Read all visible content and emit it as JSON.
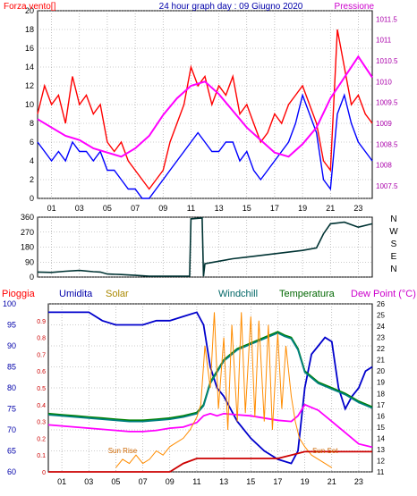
{
  "page": {
    "background": "#ffffff",
    "plot_background": "#ffffff",
    "grid_color": "#9a9a9a",
    "frame_color": "#000000"
  },
  "chart_data": [
    {
      "type": "line",
      "title": "24 hour graph day : 09 Giugno 2020",
      "left_label": "Forza vento[]",
      "right_label": "Pressione",
      "x_ticks": [
        "01",
        "03",
        "05",
        "07",
        "09",
        "11",
        "13",
        "15",
        "17",
        "19",
        "21",
        "23"
      ],
      "x_range": [
        0,
        24
      ],
      "y_left_range": [
        0,
        20
      ],
      "y_left_ticks": [
        0,
        2,
        4,
        6,
        8,
        10,
        12,
        14,
        16,
        18,
        20
      ],
      "y_right_range": [
        1007.2,
        1011.7
      ],
      "y_right_ticks": [
        "1007.5",
        "1008",
        "1008.5",
        "1009",
        "1009.5",
        "1010",
        "1010.5",
        "1011",
        "1011.5"
      ],
      "y_right_tick_values": [
        1007.5,
        1008,
        1008.5,
        1009,
        1009.5,
        1010,
        1010.5,
        1011,
        1011.5
      ],
      "series": [
        {
          "axis": "left",
          "color": "#ff0000",
          "x": [
            0,
            0.5,
            1,
            1.5,
            2,
            2.5,
            3,
            3.5,
            4,
            4.5,
            5,
            5.5,
            6,
            6.5,
            7,
            7.5,
            8,
            8.5,
            9,
            9.5,
            10,
            10.5,
            11,
            11.5,
            12,
            12.5,
            13,
            13.5,
            14,
            14.5,
            15,
            15.5,
            16,
            16.5,
            17,
            17.5,
            18,
            18.5,
            19,
            19.5,
            20,
            20.5,
            21,
            21.5,
            22,
            22.5,
            23,
            23.5,
            24
          ],
          "values": [
            9,
            12,
            10,
            11,
            8,
            13,
            10,
            11,
            9,
            10,
            6,
            5,
            6,
            4,
            3,
            2,
            1,
            2,
            3,
            6,
            8,
            10,
            14,
            12,
            13,
            10,
            12,
            11,
            13,
            9,
            10,
            8,
            6,
            7,
            9,
            8,
            10,
            11,
            12,
            10,
            8,
            4,
            3,
            18,
            14,
            10,
            11,
            9,
            8
          ]
        },
        {
          "axis": "left",
          "color": "#0000ff",
          "x": [
            0,
            0.5,
            1,
            1.5,
            2,
            2.5,
            3,
            3.5,
            4,
            4.5,
            5,
            5.5,
            6,
            6.5,
            7,
            7.5,
            8,
            8.5,
            9,
            9.5,
            10,
            10.5,
            11,
            11.5,
            12,
            12.5,
            13,
            13.5,
            14,
            14.5,
            15,
            15.5,
            16,
            16.5,
            17,
            17.5,
            18,
            18.5,
            19,
            19.5,
            20,
            20.5,
            21,
            21.5,
            22,
            22.5,
            23,
            23.5,
            24
          ],
          "values": [
            6,
            5,
            4,
            5,
            4,
            6,
            5,
            5,
            4,
            5,
            3,
            3,
            2,
            1,
            1,
            0,
            0,
            1,
            2,
            3,
            4,
            5,
            6,
            7,
            6,
            5,
            5,
            6,
            6,
            4,
            5,
            3,
            2,
            3,
            4,
            5,
            6,
            8,
            11,
            9,
            7,
            2,
            1,
            9,
            11,
            8,
            6,
            5,
            4
          ]
        },
        {
          "axis": "right",
          "color": "#ff00ff",
          "x": [
            0,
            1,
            2,
            3,
            4,
            5,
            6,
            7,
            8,
            9,
            10,
            11,
            12,
            13,
            14,
            15,
            16,
            17,
            18,
            19,
            20,
            21,
            22,
            23,
            24
          ],
          "values": [
            1009.1,
            1008.9,
            1008.7,
            1008.6,
            1008.4,
            1008.3,
            1008.2,
            1008.4,
            1008.7,
            1009.2,
            1009.6,
            1009.9,
            1010.0,
            1009.7,
            1009.3,
            1008.9,
            1008.6,
            1008.3,
            1008.2,
            1008.5,
            1008.9,
            1009.6,
            1010.1,
            1010.6,
            1010.1
          ]
        }
      ]
    },
    {
      "type": "line",
      "x_range": [
        0,
        24
      ],
      "y_range": [
        0,
        360
      ],
      "y_ticks": [
        0,
        90,
        180,
        270,
        360
      ],
      "y_tick_labels": [
        "0",
        "90",
        "180",
        "270",
        "360"
      ],
      "direction_labels": [
        "N",
        "W",
        "S",
        "E",
        "N"
      ],
      "series": [
        {
          "color": "#003333",
          "x": [
            0,
            1,
            2,
            3,
            4,
            4.5,
            5,
            6,
            7,
            8,
            9,
            10,
            10.9,
            11,
            11.8,
            11.9,
            12,
            13,
            14,
            15,
            16,
            17,
            18,
            19,
            20,
            20.5,
            21,
            22,
            23,
            24
          ],
          "values": [
            30,
            28,
            35,
            40,
            32,
            30,
            18,
            15,
            10,
            5,
            5,
            5,
            5,
            350,
            355,
            5,
            80,
            95,
            110,
            120,
            130,
            140,
            150,
            160,
            175,
            260,
            320,
            330,
            300,
            320
          ]
        }
      ]
    },
    {
      "type": "line",
      "left_labels": [
        {
          "text": "Pioggia",
          "color": "#ff0000"
        },
        {
          "text": "Umidita",
          "color": "#0000aa"
        },
        {
          "text": "Solar",
          "color": "#aa8800"
        }
      ],
      "right_labels": [
        {
          "text": "Windchill",
          "color": "#006666"
        },
        {
          "text": "Temperatura",
          "color": "#006600"
        },
        {
          "text": "Dew Point (°C)",
          "color": "#cc00cc"
        }
      ],
      "x_ticks": [
        "01",
        "03",
        "05",
        "07",
        "09",
        "11",
        "13",
        "15",
        "17",
        "19",
        "21",
        "23"
      ],
      "x_range": [
        0,
        24
      ],
      "y_left_range": [
        60,
        100
      ],
      "y_left_ticks": [
        60,
        65,
        70,
        75,
        80,
        85,
        90,
        95,
        100
      ],
      "y_rain_range": [
        0,
        1
      ],
      "y_rain_ticks": [
        "0",
        "0.1",
        "0.2",
        "0.3",
        "0.4",
        "0.5",
        "0.6",
        "0.7",
        "0.8",
        "0.9"
      ],
      "y_rain_tick_values": [
        0,
        0.1,
        0.2,
        0.3,
        0.4,
        0.5,
        0.6,
        0.7,
        0.8,
        0.9
      ],
      "y_right_range": [
        11,
        26
      ],
      "y_right_ticks": [
        11,
        12,
        13,
        14,
        15,
        16,
        17,
        18,
        19,
        20,
        21,
        22,
        23,
        24,
        25,
        26
      ],
      "annotations": [
        {
          "text": "Sun Rise",
          "x": 5.5,
          "y": 64.5,
          "color": "#cc6600"
        },
        {
          "text": "Sun Set",
          "x": 20.5,
          "y": 64.5,
          "color": "#cc6600"
        }
      ],
      "series": [
        {
          "name": "Umidita",
          "axis": "left",
          "color": "#0000cc",
          "x": [
            0,
            1,
            2,
            3,
            4,
            5,
            6,
            7,
            8,
            9,
            10,
            11,
            11.5,
            12,
            12.5,
            13,
            13.5,
            14,
            15,
            16,
            17,
            18,
            18.5,
            19,
            19.5,
            20,
            20.5,
            21,
            21.5,
            22,
            22.5,
            23,
            23.5,
            24
          ],
          "values": [
            98,
            98,
            98,
            98,
            96,
            95,
            95,
            95,
            96,
            96,
            97,
            98,
            95,
            85,
            80,
            78,
            75,
            72,
            68,
            65,
            63,
            62,
            65,
            80,
            88,
            90,
            92,
            91,
            80,
            75,
            78,
            80,
            84,
            85
          ]
        },
        {
          "name": "Temperatura",
          "axis": "right",
          "color": "#008000",
          "x": [
            0,
            1,
            2,
            3,
            4,
            5,
            6,
            7,
            8,
            9,
            10,
            11,
            11.5,
            12,
            12.5,
            13,
            14,
            15,
            16,
            17,
            17.5,
            18,
            18.5,
            19,
            20,
            21,
            22,
            23,
            24
          ],
          "values": [
            16.2,
            16.1,
            16.0,
            15.9,
            15.8,
            15.7,
            15.6,
            15.6,
            15.7,
            15.8,
            16.0,
            16.3,
            17,
            19,
            20,
            21,
            22,
            22.5,
            23,
            23.5,
            23.2,
            23,
            22,
            20,
            19,
            18.5,
            18,
            17.3,
            16.8
          ]
        },
        {
          "name": "Windchill",
          "axis": "right",
          "color": "#008080",
          "x": [
            0,
            1,
            2,
            3,
            4,
            5,
            6,
            7,
            8,
            9,
            10,
            11,
            11.5,
            12,
            12.5,
            13,
            14,
            15,
            16,
            17,
            17.5,
            18,
            18.5,
            19,
            20,
            21,
            22,
            23,
            24
          ],
          "values": [
            16.1,
            16.0,
            15.9,
            15.8,
            15.7,
            15.6,
            15.5,
            15.5,
            15.6,
            15.7,
            15.9,
            16.2,
            16.9,
            18.9,
            19.9,
            20.9,
            21.9,
            22.4,
            22.9,
            23.4,
            23.1,
            22.9,
            21.9,
            19.9,
            18.9,
            18.4,
            17.9,
            17.2,
            16.7
          ]
        },
        {
          "name": "Dew Point",
          "axis": "right",
          "color": "#ff00ff",
          "x": [
            0,
            1,
            2,
            3,
            4,
            5,
            6,
            7,
            8,
            9,
            10,
            11,
            11.5,
            12,
            12.5,
            13,
            14,
            15,
            16,
            17,
            18,
            18.5,
            19,
            20,
            21,
            22,
            23,
            24
          ],
          "values": [
            15.2,
            15.1,
            15.0,
            14.9,
            14.8,
            14.7,
            14.6,
            14.6,
            14.7,
            14.9,
            15.0,
            15.4,
            16.0,
            16.2,
            16.0,
            16.2,
            16.1,
            16.0,
            15.8,
            15.6,
            15.5,
            16.0,
            17.0,
            16.5,
            15.5,
            14.5,
            13.5,
            13.2
          ]
        },
        {
          "name": "Solar",
          "axis": "left",
          "color": "#ff8c00",
          "x": [
            5,
            5.5,
            6,
            6.5,
            7,
            7.5,
            8,
            8.5,
            9,
            9.5,
            10,
            10.5,
            11,
            11.3,
            11.6,
            12,
            12.3,
            12.6,
            13,
            13.3,
            13.6,
            14,
            14.3,
            14.6,
            15,
            15.3,
            15.6,
            16,
            16.3,
            16.6,
            17,
            17.3,
            17.6,
            18,
            18.3,
            18.6,
            19,
            19.5,
            20,
            20.5,
            21
          ],
          "values": [
            61,
            63,
            62,
            64,
            62,
            63,
            65,
            64,
            66,
            67,
            68,
            70,
            73,
            76,
            90,
            80,
            98,
            75,
            92,
            70,
            95,
            72,
            98,
            74,
            97,
            73,
            96,
            72,
            95,
            70,
            93,
            75,
            90,
            78,
            72,
            68,
            66,
            64,
            63,
            62,
            61
          ]
        },
        {
          "name": "Pioggia",
          "axis": "rain",
          "color": "#cc0000",
          "x": [
            0,
            1,
            2,
            3,
            4,
            5,
            6,
            7,
            8,
            9,
            10,
            11,
            12,
            13,
            14,
            15,
            16,
            17,
            18,
            19,
            20,
            21,
            22,
            23,
            24
          ],
          "values": [
            0,
            0,
            0,
            0,
            0,
            0,
            0,
            0,
            0,
            0,
            0.05,
            0.08,
            0.08,
            0.08,
            0.08,
            0.08,
            0.08,
            0.08,
            0.1,
            0.12,
            0.12,
            0.12,
            0.12,
            0.12,
            0.12
          ]
        }
      ]
    }
  ]
}
